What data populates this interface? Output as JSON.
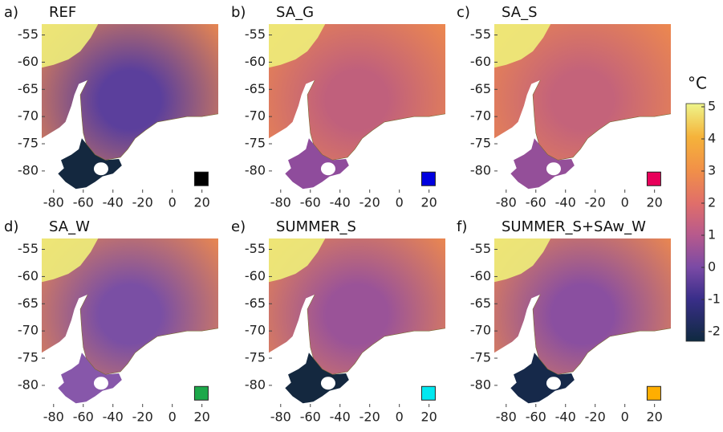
{
  "axes": {
    "xlim": [
      -88,
      31
    ],
    "ylim": [
      -84,
      -53
    ],
    "xticks": [
      -80,
      -60,
      -40,
      -20,
      0,
      20
    ],
    "yticks": [
      -55,
      -60,
      -65,
      -70,
      -75,
      -80
    ]
  },
  "panels": [
    {
      "letter": "a)",
      "title": "REF",
      "marker_color": "#000000",
      "sea_color": "#5b3f9c",
      "shelf_color": "#14283f"
    },
    {
      "letter": "b)",
      "title": "SA_G",
      "marker_color": "#0000e0",
      "sea_color": "#c0607c",
      "shelf_color": "#8f4c9c"
    },
    {
      "letter": "c)",
      "title": "SA_S",
      "marker_color": "#e8005a",
      "sea_color": "#c4637a",
      "shelf_color": "#944f99"
    },
    {
      "letter": "d)",
      "title": "SA_W",
      "marker_color": "#1ca84a",
      "sea_color": "#7a4fa4",
      "shelf_color": "#8757aa"
    },
    {
      "letter": "e)",
      "title": "SUMMER_S",
      "marker_color": "#00e8f0",
      "sea_color": "#9a5398",
      "shelf_color": "#14283f"
    },
    {
      "letter": "f)",
      "title": "SUMMER_S+SAw_W",
      "marker_color": "#ffae00",
      "sea_color": "#8a4fa0",
      "shelf_color": "#16294a"
    }
  ],
  "colorbar": {
    "unit": "°C",
    "lim": [
      -2.3,
      5.1
    ],
    "ticks": [
      5,
      4,
      3,
      2,
      1,
      0,
      -1,
      -2
    ]
  }
}
